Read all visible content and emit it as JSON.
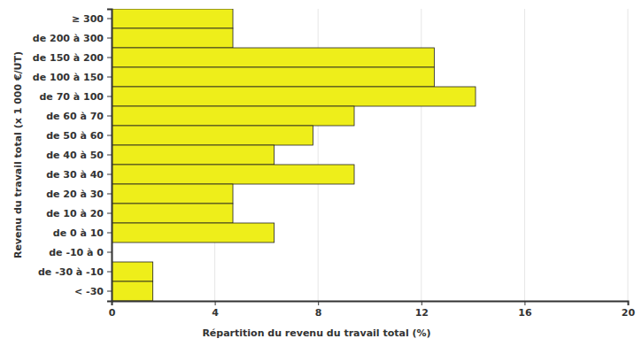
{
  "chart_data": {
    "type": "bar",
    "orientation": "horizontal",
    "x_label": "Répartition du revenu du travail total (%)",
    "y_label": "Revenu du travail total (x 1 000 €/UT)",
    "categories": [
      "≥ 300",
      "de 200 à 300",
      "de 150 à 200",
      "de 100 à 150",
      "de 70 à 100",
      "de 60 à 70",
      "de 50 à 60",
      "de 40 à 50",
      "de 30 à 40",
      "de 20 à 30",
      "de 10 à 20",
      "de 0 à 10",
      "de -10 à 0",
      "de -30 à -10",
      "< -30"
    ],
    "values": [
      4.7,
      4.7,
      12.5,
      12.5,
      14.1,
      9.4,
      7.8,
      6.3,
      9.4,
      4.7,
      4.7,
      6.3,
      0,
      1.6,
      1.6
    ],
    "color": "#eeee1a",
    "xlim": [
      0,
      20
    ],
    "xticks": [
      0,
      4,
      8,
      12,
      16,
      20
    ],
    "grid": true
  }
}
